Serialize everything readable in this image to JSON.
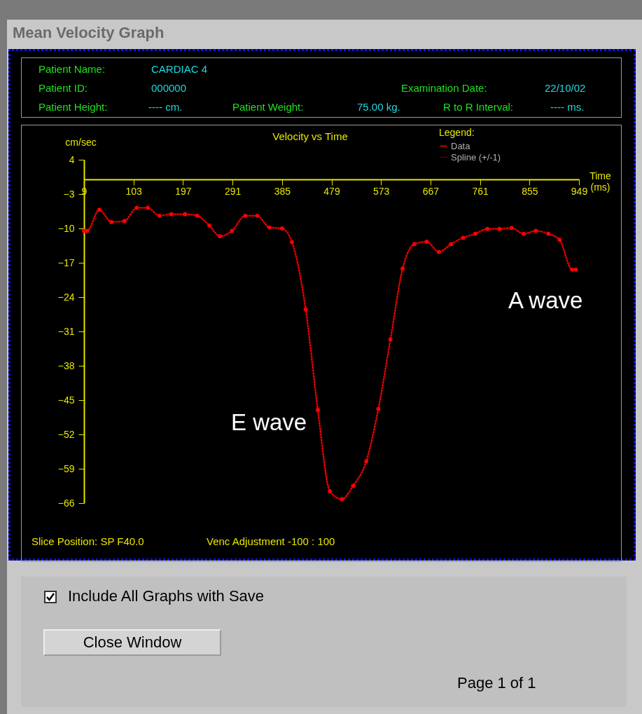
{
  "chart_data": {
    "type": "line",
    "title": "Velocity vs Time",
    "xlabel": "Time (ms)",
    "ylabel": "cm/sec",
    "legend_title": "Legend:",
    "xlim": [
      9,
      949
    ],
    "xticks": [
      9,
      103,
      197,
      291,
      385,
      479,
      573,
      667,
      761,
      855,
      949
    ],
    "ylim": [
      -66,
      4
    ],
    "yticks": [
      4,
      -3,
      -10,
      -17,
      -24,
      -31,
      -38,
      -45,
      -52,
      -59,
      -66
    ],
    "grid": false,
    "legend": "top right",
    "marker": "circle",
    "series": [
      {
        "name": "Data",
        "color": "#ff0000",
        "x": [
          9,
          15,
          38,
          61,
          86,
          109,
          130,
          152,
          175,
          201,
          224,
          247,
          267,
          290,
          315,
          338,
          361,
          385,
          404,
          430,
          453,
          476,
          499,
          520,
          545,
          568,
          591,
          614,
          636,
          660,
          683,
          706,
          729,
          752,
          775,
          798,
          821,
          844,
          867,
          891,
          912,
          936,
          943
        ],
        "values": [
          -10.5,
          -10.5,
          -6.2,
          -8.7,
          -8.5,
          -5.8,
          -5.8,
          -7.4,
          -7.1,
          -7.1,
          -7.4,
          -9.4,
          -11.6,
          -10.5,
          -7.4,
          -7.4,
          -9.8,
          -10,
          -12.8,
          -26.5,
          -47,
          -63.6,
          -65.2,
          -62.5,
          -57.5,
          -46.8,
          -32.6,
          -18.2,
          -13.2,
          -12.7,
          -14.8,
          -13.2,
          -11.9,
          -11.1,
          -10.1,
          -10.1,
          -9.9,
          -11.1,
          -10.5,
          -11.1,
          -12.3,
          -18.4,
          -18.4
        ]
      },
      {
        "name": "Spline (+/-1)",
        "color": "#a00000",
        "line_style": "dotted",
        "marker": "none",
        "x": [
          9,
          15,
          38,
          61,
          86,
          109,
          130,
          152,
          175,
          201,
          224,
          247,
          267,
          290,
          315,
          338,
          361,
          385,
          404,
          430,
          453,
          476,
          499,
          520,
          545,
          568,
          591,
          614,
          636,
          660,
          683,
          706,
          729,
          752,
          775,
          798,
          821,
          844,
          867,
          891,
          912,
          936,
          943
        ],
        "values": [
          -10.5,
          -10.5,
          -6.2,
          -8.7,
          -8.5,
          -5.8,
          -5.8,
          -7.4,
          -7.1,
          -7.1,
          -7.4,
          -9.4,
          -11.6,
          -10.5,
          -7.4,
          -7.4,
          -9.8,
          -10,
          -12.8,
          -26.5,
          -47,
          -63.6,
          -65.2,
          -62.5,
          -57.5,
          -46.8,
          -32.6,
          -18.2,
          -13.2,
          -12.7,
          -14.8,
          -13.2,
          -11.9,
          -11.1,
          -10.1,
          -10.1,
          -9.9,
          -11.1,
          -10.5,
          -11.1,
          -12.3,
          -18.4,
          -18.4
        ]
      }
    ],
    "annotations": [
      "Mean Velocity Graph",
      "Patient Name:",
      "CARDIAC 4",
      "Patient ID:",
      "000000",
      "Examination Date:",
      "22/10/02",
      "Patient Height:",
      "---- cm.",
      "Patient Weight:",
      "75.00 kg.",
      "R to R Interval:",
      "---- ms.",
      "Slice Position: SP F40.0",
      "Venc Adjustment -100 : 100",
      "Include All Graphs with Save",
      "Close Window",
      "Page 1 of 1",
      "E wave",
      "A wave"
    ]
  }
}
